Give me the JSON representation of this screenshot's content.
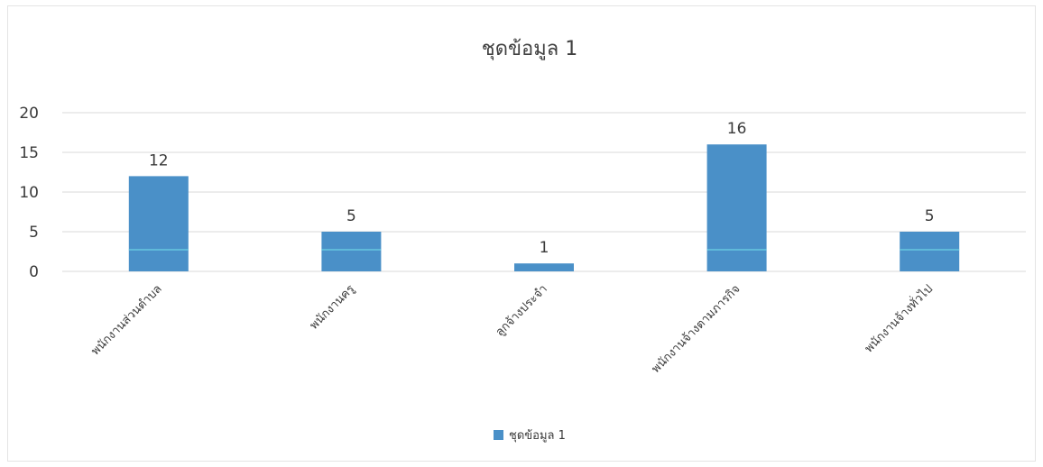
{
  "chart_data": {
    "type": "bar",
    "title": "ชุดข้อมูล 1",
    "categories": [
      "พนักงานส่วนตำบล",
      "พนักงานครู",
      "ลูกจ้างประจำ",
      "พนักงานจ้างตามภารกิจ",
      "พนักงานจ้างทั่วไป"
    ],
    "series": [
      {
        "name": "ชุดข้อมูล 1",
        "values": [
          12,
          5,
          1,
          16,
          5
        ],
        "color": "#4a90c8"
      }
    ],
    "data_labels": [
      "12",
      "5",
      "1",
      "16",
      "5"
    ],
    "yticks": [
      "0",
      "5",
      "10",
      "15",
      "20"
    ],
    "ylim": [
      0,
      20
    ],
    "grid": true,
    "legend": {
      "position": "bottom",
      "label": "ชุดข้อมูล 1"
    },
    "xlabel": "",
    "ylabel": ""
  },
  "colors": {
    "bar": "#4a90c8",
    "grid": "#d9d9d9",
    "accent_line": "#66c8e0"
  }
}
